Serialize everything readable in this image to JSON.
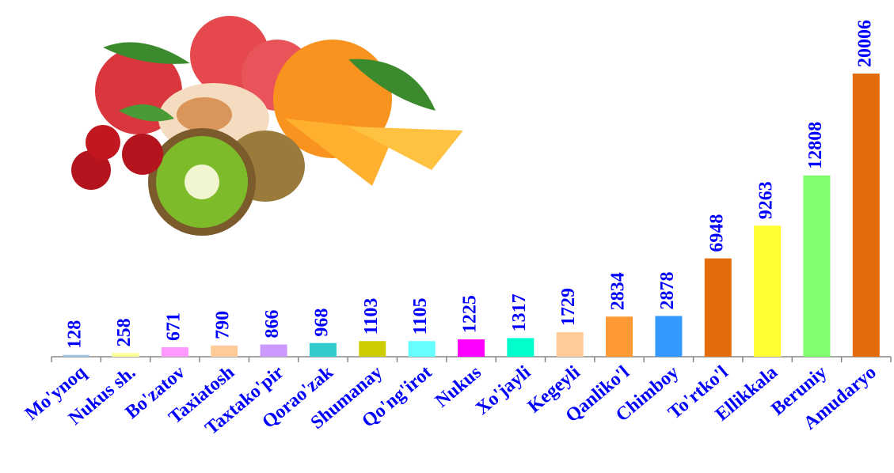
{
  "chart_data": {
    "type": "bar",
    "categories": [
      "Mo'ynoq",
      "Nukus sh.",
      "Bo'zatov",
      "Taxiatosh",
      "Taxtako'pir",
      "Qorao'zak",
      "Shumanay",
      "Qo'ng'irot",
      "Nukus",
      "Xo'jayli",
      "Kegeyli",
      "Qanliko'l",
      "Chimboy",
      "To'rtko'l",
      "Ellikkala",
      "Beruniy",
      "Amudaryo"
    ],
    "values": [
      128,
      258,
      671,
      790,
      866,
      968,
      1103,
      1105,
      1225,
      1317,
      1729,
      2834,
      2878,
      6948,
      9263,
      12808,
      20006
    ],
    "colors": [
      "#9dc3e6",
      "#ffff99",
      "#ff99ff",
      "#ffcc99",
      "#cc99ff",
      "#33cccc",
      "#cccc00",
      "#66ffff",
      "#ff00ff",
      "#00ffcc",
      "#ffcc99",
      "#ff9933",
      "#3399ff",
      "#e36c0a",
      "#ffff33",
      "#80ff6f",
      "#e36c0a"
    ]
  }
}
